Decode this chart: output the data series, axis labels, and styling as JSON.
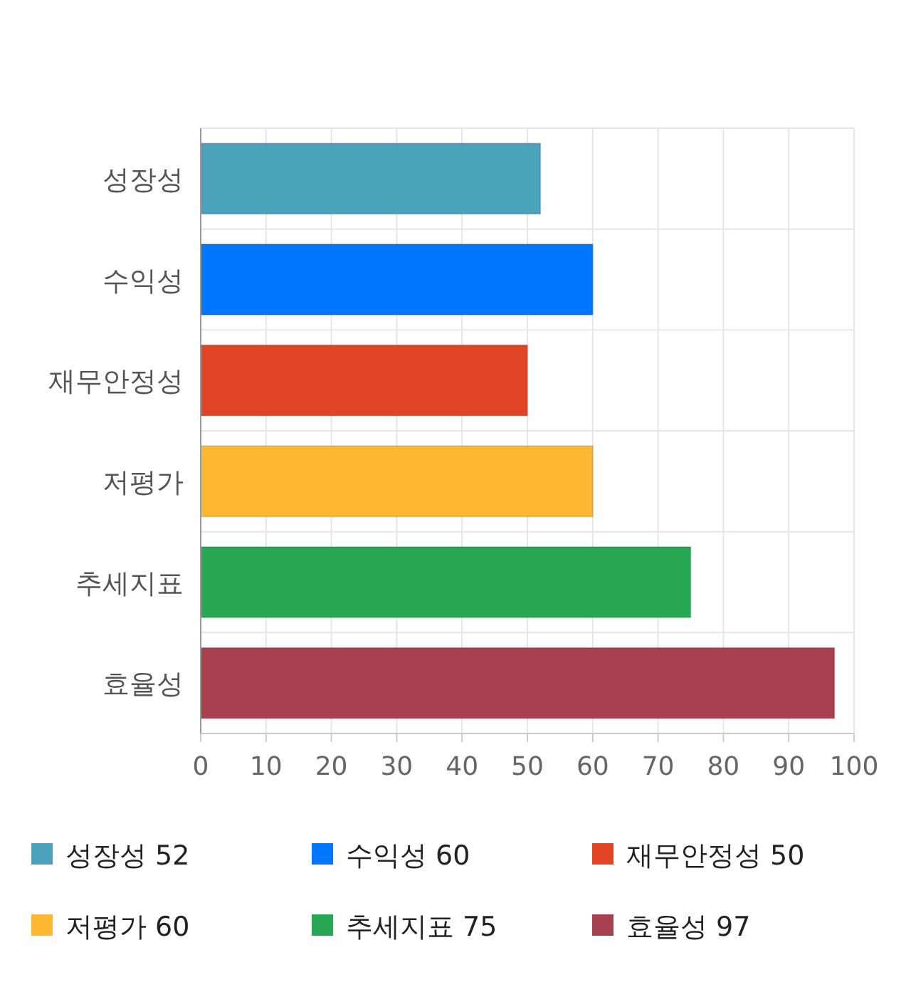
{
  "chart_data": {
    "type": "bar",
    "orientation": "horizontal",
    "categories": [
      "성장성",
      "수익성",
      "재무안정성",
      "저평가",
      "추세지표",
      "효율성"
    ],
    "series": [
      {
        "name": "성장성 52",
        "color": "#4ba2bb",
        "values": [
          52,
          null,
          null,
          null,
          null,
          null
        ]
      },
      {
        "name": "수익성 60",
        "color": "#0077ff",
        "values": [
          null,
          60,
          null,
          null,
          null,
          null
        ]
      },
      {
        "name": "재무안정성 50",
        "color": "#e24426",
        "values": [
          null,
          null,
          50,
          null,
          null,
          null
        ]
      },
      {
        "name": "저평가 60",
        "color": "#ffb833",
        "values": [
          null,
          null,
          null,
          60,
          null,
          null
        ]
      },
      {
        "name": "추세지표 75",
        "color": "#28a755",
        "values": [
          null,
          null,
          null,
          null,
          75,
          null
        ]
      },
      {
        "name": "효율성 97",
        "color": "#a8414f",
        "values": [
          null,
          null,
          null,
          null,
          null,
          97
        ]
      }
    ],
    "xlim": [
      0,
      100
    ],
    "xticks": [
      0,
      10,
      20,
      30,
      40,
      50,
      60,
      70,
      80,
      90,
      100
    ],
    "grid": true,
    "legend": "bottom"
  }
}
